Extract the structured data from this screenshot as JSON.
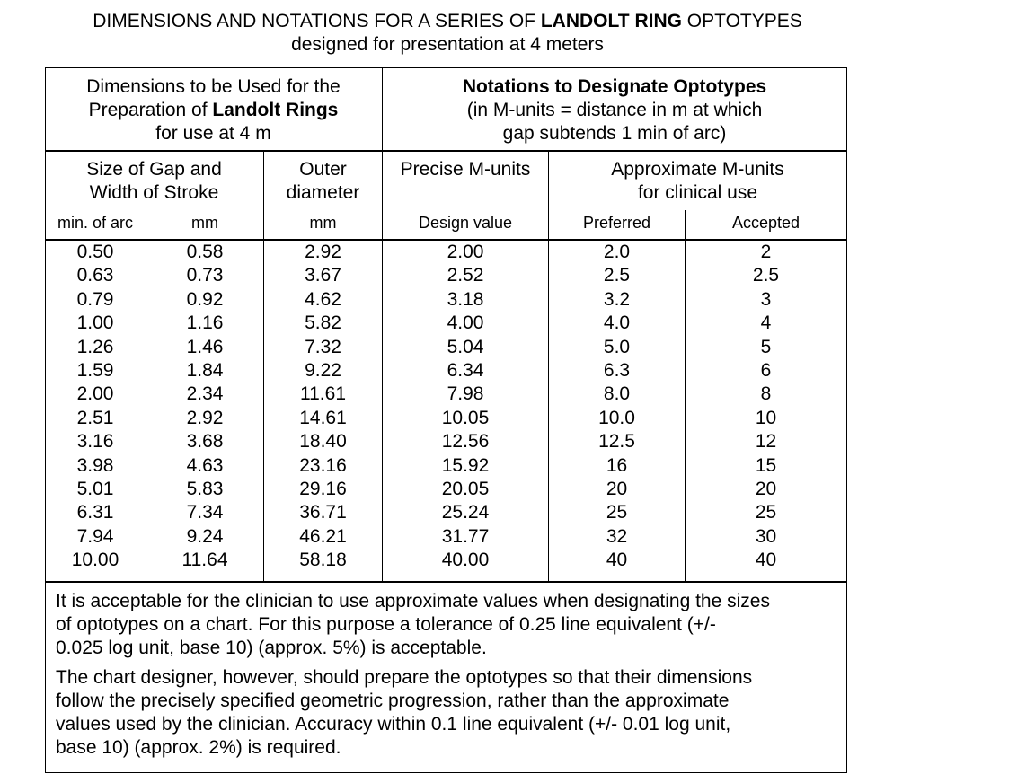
{
  "title": {
    "line1_pre": "DIMENSIONS AND NOTATIONS FOR A SERIES OF ",
    "line1_bold": "LANDOLT RING",
    "line1_post": " OPTOTYPES",
    "line2": "designed for presentation at 4 meters"
  },
  "header": {
    "left_line1": "Dimensions to be Used for the",
    "left_line2_pre": "Preparation of ",
    "left_line2_bold": "Landolt Rings",
    "left_line3": "for use at 4 m",
    "right_line1": "Notations to Designate Optotypes",
    "right_line2": "(in M-units = distance in m at which",
    "right_line3": "gap subtends 1 min of arc)"
  },
  "subheader": {
    "gap_line1": "Size of Gap and",
    "gap_line2": "Width of Stroke",
    "outer_line1": "Outer",
    "outer_line2": "diameter",
    "precise": "Precise M-units",
    "approx_line1": "Approximate M-units",
    "approx_line2": "for clinical use"
  },
  "units": [
    "min. of arc",
    "mm",
    "mm",
    "Design value",
    "Preferred",
    "Accepted"
  ],
  "columns": {
    "min_arc": [
      "0.50",
      "0.63",
      "0.79",
      "1.00",
      "1.26",
      "1.59",
      "2.00",
      "2.51",
      "3.16",
      "3.98",
      "5.01",
      "6.31",
      "7.94",
      "10.00"
    ],
    "gap_mm": [
      "0.58",
      "0.73",
      "0.92",
      "1.16",
      "1.46",
      "1.84",
      "2.34",
      "2.92",
      "3.68",
      "4.63",
      "5.83",
      "7.34",
      "9.24",
      "11.64"
    ],
    "outer_mm": [
      "2.92",
      "3.67",
      "4.62",
      "5.82",
      "7.32",
      "9.22",
      "11.61",
      "14.61",
      "18.40",
      "23.16",
      "29.16",
      "36.71",
      "46.21",
      "58.18"
    ],
    "design": [
      "2.00",
      "2.52",
      "3.18",
      "4.00",
      "5.04",
      "6.34",
      "7.98",
      "10.05",
      "12.56",
      "15.92",
      "20.05",
      "25.24",
      "31.77",
      "40.00"
    ],
    "preferred": [
      "2.0",
      "2.5",
      "3.2",
      "4.0",
      "5.0",
      "6.3",
      "8.0",
      "10.0",
      "12.5",
      "16",
      "20",
      "25",
      "32",
      "40"
    ],
    "accepted": [
      "2",
      "2.5",
      "3",
      "4",
      "5",
      "6",
      "8",
      "10",
      "12",
      "15",
      "20",
      "25",
      "30",
      "40"
    ]
  },
  "notes": {
    "p1_l1": "It is acceptable for the clinician to use approximate values when designating the sizes",
    "p1_l2": "of optotypes on a chart.  For this purpose a tolerance of 0.25 line equivalent (+/-",
    "p1_l3": "0.025 log unit, base 10) (approx. 5%) is acceptable.",
    "p2_l1": "The chart designer, however, should prepare the optotypes so that their dimensions",
    "p2_l2": "follow the precisely specified geometric progression, rather than the approximate",
    "p2_l3": "values used by the clinician.  Accuracy within 0.1 line equivalent (+/- 0.01 log unit,",
    "p2_l4": "base 10) (approx. 2%) is required."
  }
}
